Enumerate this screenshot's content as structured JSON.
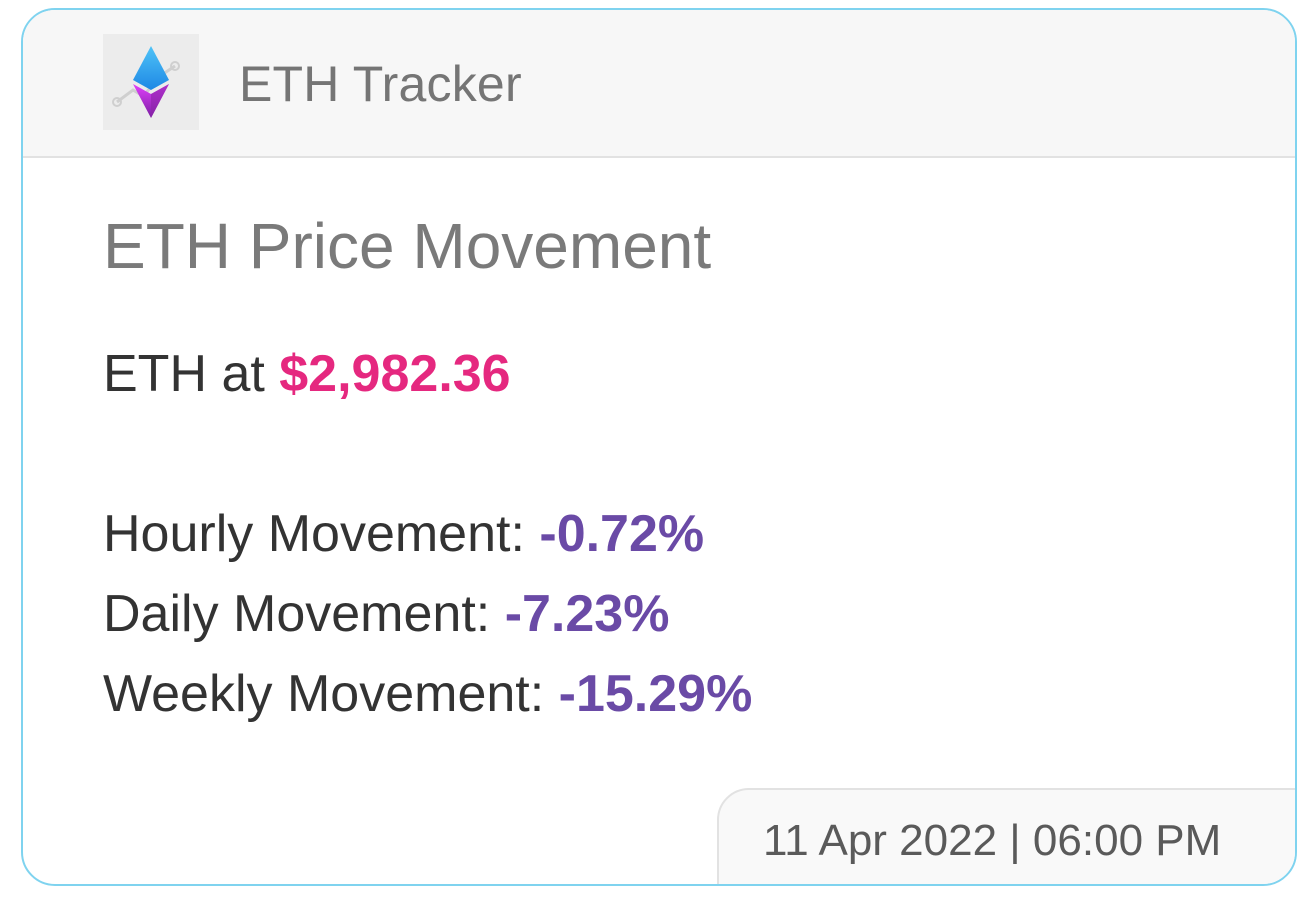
{
  "header": {
    "app_title": "ETH Tracker",
    "logo_icon": "ethereum-logo-icon"
  },
  "main": {
    "heading": "ETH Price Movement",
    "price_prefix": "ETH at ",
    "price": "$2,982.36",
    "movements": {
      "hourly_label": "Hourly Movement: ",
      "hourly_value": "-0.72%",
      "daily_label": "Daily Movement: ",
      "daily_value": "-7.23%",
      "weekly_label": "Weekly Movement: ",
      "weekly_value": "-15.29%"
    }
  },
  "footer": {
    "timestamp": "11 Apr 2022 | 06:00 PM"
  },
  "colors": {
    "border_accent": "#7fd3ef",
    "price": "#e5287f",
    "movement_value": "#6a4aa6",
    "header_bg": "#f7f7f7"
  }
}
